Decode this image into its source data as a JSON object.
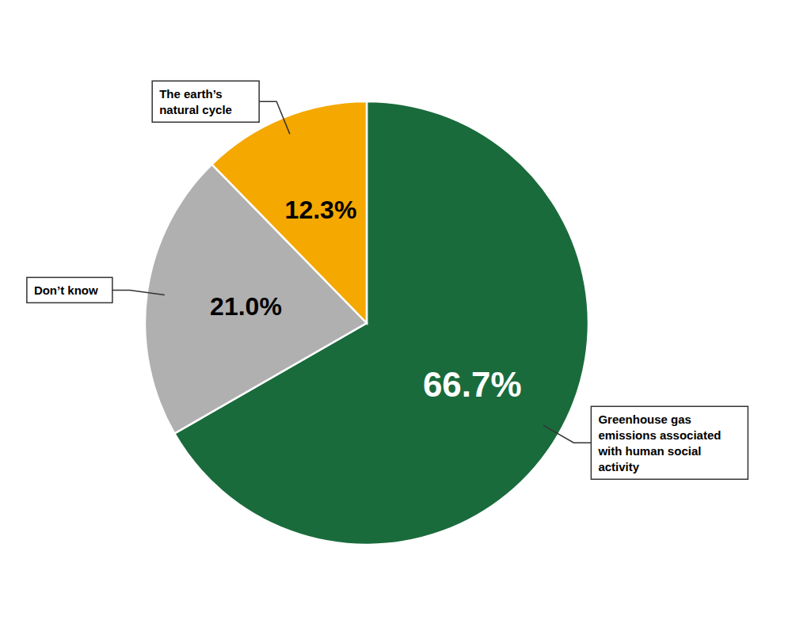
{
  "chart_data": {
    "type": "pie",
    "categories": [
      "Greenhouse gas\nemissions associated\nwith human social\nactivity",
      "Don’t know",
      "The earth’s\nnatural cycle"
    ],
    "values": [
      66.7,
      21.0,
      12.3
    ],
    "value_labels": [
      "66.7%",
      "21.0%",
      "12.3%"
    ],
    "colors": [
      "#1a6b3c",
      "#b0b0b0",
      "#f5a800"
    ],
    "data_labels": true
  }
}
